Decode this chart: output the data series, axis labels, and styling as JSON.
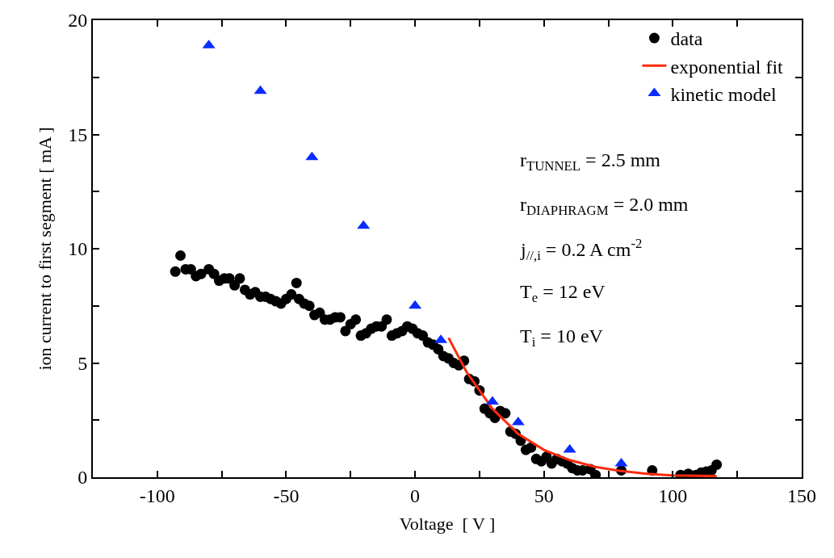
{
  "chart_data": {
    "type": "scatter",
    "xlabel": "Voltage  [ V ]",
    "ylabel": "ion current to first segment [ mA ]",
    "xlim": [
      -125,
      150
    ],
    "ylim": [
      0,
      20
    ],
    "xticks": [
      {
        "value": -125,
        "label": null
      },
      -100,
      {
        "value": -75,
        "label": null
      },
      -50,
      {
        "value": -25,
        "label": null
      },
      0,
      {
        "value": 25,
        "label": null
      },
      50,
      {
        "value": 75,
        "label": null
      },
      100,
      {
        "value": 125,
        "label": null
      },
      150
    ],
    "yticks": [
      0,
      {
        "value": 2.5,
        "label": null
      },
      5,
      {
        "value": 7.5,
        "label": null
      },
      10,
      {
        "value": 12.5,
        "label": null
      },
      15,
      {
        "value": 17.5,
        "label": null
      },
      20
    ],
    "legend": "top right",
    "annotations": [
      "r$_{TUNNEL}$ = 2.5 mm",
      "r$_{DIAPHRAGM}$ = 2.0 mm",
      "j$_{//,i}$ = 0.2 A cm$^{-2}$",
      "T$_{e}$ = 12 eV",
      "T$_{i}$ = 10 eV"
    ],
    "series": [
      {
        "name": "data",
        "marker": "circle",
        "color": "#000000",
        "x": [
          -93,
          -91,
          -89,
          -87,
          -85,
          -83,
          -80,
          -78,
          -76,
          -74,
          -72,
          -70,
          -68,
          -66,
          -64,
          -62,
          -60,
          -58,
          -56,
          -54,
          -52,
          -50,
          -48,
          -46,
          -45,
          -43,
          -41,
          -39,
          -37,
          -35,
          -33,
          -31,
          -29,
          -27,
          -25,
          -23,
          -21,
          -19,
          -17,
          -15,
          -13,
          -11,
          -9,
          -7,
          -5,
          -3,
          -1,
          1,
          3,
          5,
          7,
          9,
          11,
          13,
          15,
          17,
          19,
          21,
          23,
          25,
          27,
          29,
          31,
          33,
          35,
          37,
          39,
          41,
          43,
          45,
          47,
          49,
          51,
          53,
          55,
          57,
          59,
          61,
          63,
          65,
          68,
          70,
          80,
          92,
          103,
          106,
          109,
          111,
          113,
          115,
          117
        ],
        "values": [
          9.0,
          9.7,
          9.1,
          9.1,
          8.8,
          8.9,
          9.1,
          8.9,
          8.6,
          8.7,
          8.7,
          8.4,
          8.7,
          8.2,
          8.0,
          8.1,
          7.9,
          7.9,
          7.8,
          7.7,
          7.6,
          7.8,
          8.0,
          8.5,
          7.8,
          7.6,
          7.5,
          7.1,
          7.2,
          6.9,
          6.9,
          7.0,
          7.0,
          6.4,
          6.7,
          6.9,
          6.2,
          6.3,
          6.5,
          6.6,
          6.6,
          6.9,
          6.2,
          6.3,
          6.4,
          6.6,
          6.5,
          6.3,
          6.2,
          5.9,
          5.8,
          5.6,
          5.3,
          5.2,
          5.0,
          4.9,
          5.1,
          4.3,
          4.2,
          3.8,
          3.0,
          2.8,
          2.6,
          2.9,
          2.8,
          2.0,
          1.9,
          1.6,
          1.2,
          1.3,
          0.8,
          0.7,
          0.9,
          0.6,
          0.8,
          0.7,
          0.6,
          0.4,
          0.3,
          0.3,
          0.35,
          0.1,
          0.3,
          0.3,
          0.1,
          0.15,
          0.1,
          0.2,
          0.25,
          0.3,
          0.55
        ]
      },
      {
        "name": "exponential fit",
        "type": "line",
        "marker": "none",
        "line_style": "solid",
        "color": "#ff2a0f",
        "x": [
          13,
          20,
          30,
          40,
          50,
          60,
          70,
          80,
          90,
          100,
          117
        ],
        "values": [
          6.1,
          4.6,
          3.0,
          1.9,
          1.2,
          0.75,
          0.45,
          0.27,
          0.15,
          0.08,
          0.05
        ]
      },
      {
        "name": "kinetic model",
        "type": "scatter",
        "marker": "triangle",
        "color": "#0a2cff",
        "x": [
          -80,
          -60,
          -40,
          -20,
          0,
          10,
          30,
          40,
          60,
          80
        ],
        "values": [
          18.9,
          16.9,
          14.0,
          11.0,
          7.5,
          6.0,
          3.3,
          2.4,
          1.2,
          0.6
        ]
      }
    ]
  }
}
